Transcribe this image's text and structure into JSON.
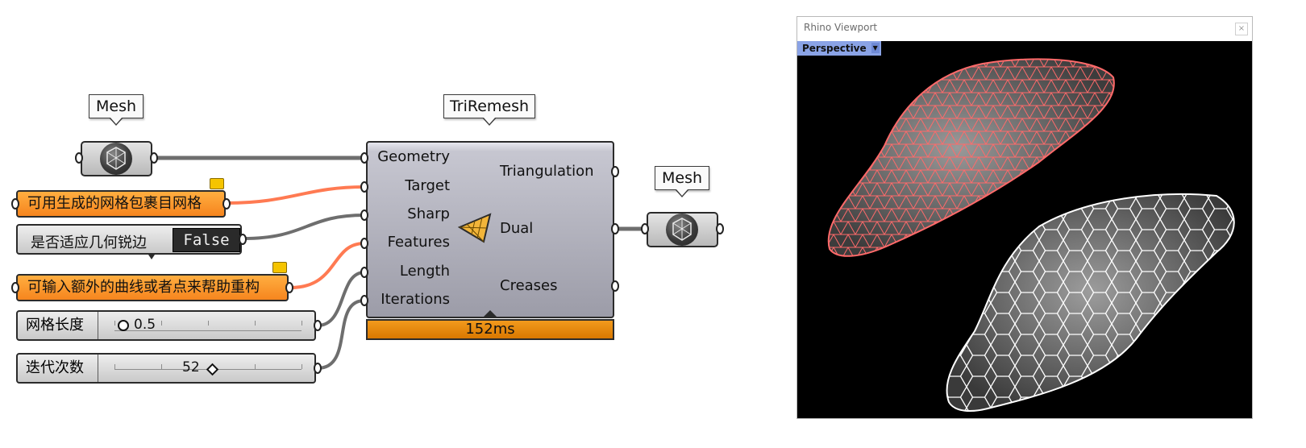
{
  "canvas": {
    "tags": {
      "mesh_in": "Mesh",
      "triremesh": "TriRemesh",
      "mesh_out": "Mesh"
    },
    "panels": {
      "target_note": "可用生成的网格包裹目网格",
      "features_note": "可输入额外的曲线或者点来帮助重构"
    },
    "boolean": {
      "label": "是否适应几何锐边",
      "value": "False"
    },
    "sliders": [
      {
        "label": "网格长度",
        "value": "0.5"
      },
      {
        "label": "迭代次数",
        "value": "52"
      }
    ],
    "triremesh": {
      "inputs": [
        "Geometry",
        "Target",
        "Sharp",
        "Features",
        "Length",
        "Iterations"
      ],
      "outputs": [
        "Triangulation",
        "Dual",
        "Creases"
      ],
      "icon": "triangle-mesh-icon",
      "time": "152ms"
    },
    "colors": {
      "wire": "#6e6e6e",
      "wire_orange": "#ff7a52",
      "panel_orange": "#f6851e",
      "component_gray": "#a9a9b4",
      "timebar": "#e68400"
    }
  },
  "viewport": {
    "window_title": "Rhino Viewport",
    "view_tab": "Perspective",
    "colors": {
      "background": "#000000",
      "mesh_red": "#ff6a6a",
      "mesh_white": "#ffffff",
      "tab": "#8aa3e6"
    }
  }
}
